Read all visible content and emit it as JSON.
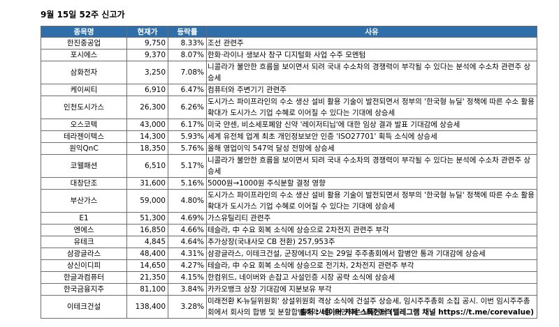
{
  "title": "9월 15일 52주 신고가",
  "headers": {
    "name": "종목명",
    "price": "현재가",
    "rate": "등락률",
    "reason": "사유"
  },
  "rows": [
    {
      "name": "한진중공업",
      "price": "9,750",
      "rate": "8.33%",
      "reason": "조선 관련주"
    },
    {
      "name": "포시에스",
      "price": "9,370",
      "rate": "8.07%",
      "reason": "한화·라이나 생보사 창구 디지털화 사업 수주 모멘텀"
    },
    {
      "name": "삼화전자",
      "price": "3,250",
      "rate": "7.08%",
      "reason": "니콜라가 불안한 흐름을 보이면서 되려 국내 수소차의 경쟁력이 부각될 수 있다는 분석에 수소차 관련주 상승세"
    },
    {
      "name": "케이씨티",
      "price": "6,910",
      "rate": "6.47%",
      "reason": "컴퓨터와 주변기기 관련주"
    },
    {
      "name": "인천도시가스",
      "price": "26,300",
      "rate": "6.26%",
      "reason": "도시가스 파이프라인의 수소 생산 설비 활용 기술이 발전되면서 정부의 '한국형 뉴딜' 정책에 따른 수소 활용 확대가 도시가스 기업 수혜로 이어질 수 있다는 기대에 상승세"
    },
    {
      "name": "오스코텍",
      "price": "43,000",
      "rate": "6.17%",
      "reason": "미국 얀센, 비소세포폐암 신약 '레이저티닙'에 대한 임상 결과 발표 기대감에 상승세"
    },
    {
      "name": "테라젠이텍스",
      "price": "14,300",
      "rate": "5.93%",
      "reason": "세계 유전체 업계 최초 개인정보보안 인증 'ISO27701' 획득 소식에 상승세"
    },
    {
      "name": "원익QnC",
      "price": "18,350",
      "rate": "5.76%",
      "reason": "올해 영업이익 547억 달성 전망에 상승세"
    },
    {
      "name": "코웰패션",
      "price": "6,510",
      "rate": "5.17%",
      "reason": "니콜라가 불안한 흐름을 보이면서 되려 국내 수소차의 경쟁력이 부각될 수 있다는 분석에 수소차 관련주 상승세"
    },
    {
      "name": "대창단조",
      "price": "31,600",
      "rate": "5.16%",
      "reason": "5000원→1000원 주식분할 결정 영향"
    },
    {
      "name": "부산가스",
      "price": "59,000",
      "rate": "4.80%",
      "reason": "도시가스 파이프라인의 수소 생산 설비 활용 기술이 발전되면서 정부의 '한국형 뉴딜' 정책에 따른 수소 활용 확대가 도시가스 기업 수혜로 이어질 수 있다는 기대에 상승세"
    },
    {
      "name": "E1",
      "price": "51,300",
      "rate": "4.69%",
      "reason": "가스유틸리티 관련주"
    },
    {
      "name": "엔에스",
      "price": "16,850",
      "rate": "4.66%",
      "reason": "테슬라, 中 수요 회복 소식에 상승으로 2차전지 관련주 부각"
    },
    {
      "name": "유테크",
      "price": "4,845",
      "rate": "4.64%",
      "reason": "추가상장(국내사모 CB 전환) 257,953주"
    },
    {
      "name": "삼광글라스",
      "price": "48,400",
      "rate": "4.31%",
      "reason": "삼광글라스, 이테크건설, 군장에너지 오는 29일 주주총회에서 합병안 통과 기대감에 상승세"
    },
    {
      "name": "상신이디피",
      "price": "14,650",
      "rate": "4.27%",
      "reason": "테슬라, 中 수요 회복 소식에 상승으로 전기차, 2차전지 관련주 부각"
    },
    {
      "name": "한글과컴퓨터",
      "price": "21,350",
      "rate": "4.15%",
      "reason": "한컴위드, 네이버와 손잡고 사설인증 시장 공략 소식에 상승세"
    },
    {
      "name": "한국금융지주",
      "price": "81,100",
      "rate": "3.84%",
      "reason": "카카오뱅크 상장 기대감에 지분보유 부각"
    },
    {
      "name": "이테크건설",
      "price": "138,400",
      "rate": "3.28%",
      "reason": "미래전환 K-뉴딜위원회' 상설위원회 격상 소식에 건설주 상승세, 임시주주총회 소집 공시. 이번 임시주주총회에서 회사의 합병 및 분할합병계약서를 승인하는 내용 논의"
    }
  ],
  "source": "출처 : 네이버 카페'스톡헌터'(텔레그램 채널 https://t.me/corevalue)"
}
